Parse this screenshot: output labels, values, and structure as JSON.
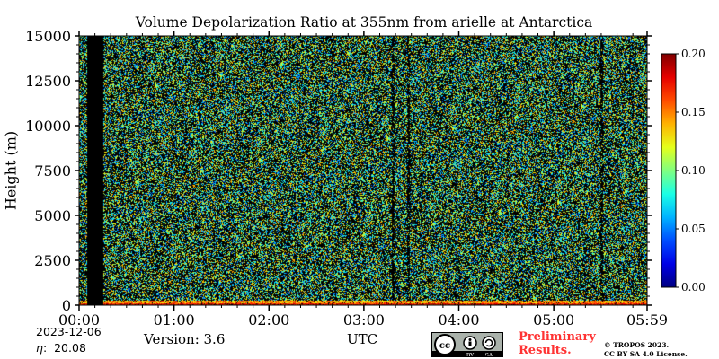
{
  "title": "Volume Depolarization Ratio at 355nm from arielle at Antarctica",
  "chart_data": {
    "type": "heatmap",
    "title": "Volume Depolarization Ratio at 355nm from arielle at Antarctica",
    "xlabel": "UTC",
    "ylabel": "Height (m)",
    "x_ticks": [
      "00:00",
      "01:00",
      "02:00",
      "03:00",
      "04:00",
      "05:00",
      "05:59"
    ],
    "y_ticks": [
      0,
      2500,
      5000,
      7500,
      10000,
      12500,
      15000
    ],
    "ylim": [
      0,
      15000
    ],
    "colorbar": {
      "ticks": [
        "0.00",
        "0.05",
        "0.10",
        "0.15",
        "0.20"
      ],
      "range": [
        0,
        0.2
      ],
      "colormap": "jet"
    },
    "data_gap": {
      "start": "00:05",
      "end": "00:15"
    },
    "near_surface_band": {
      "height_max": 300,
      "description_values": "elevated depolarization near ground"
    },
    "colors": {
      "noise_dark": "#000000",
      "noise_cyan": "#1ab4c8",
      "noise_green": "#33cc66",
      "noise_yellow": "#f0e020"
    }
  },
  "footer": {
    "date": "2023-12-06",
    "eta": "20.08",
    "version": "Version: 3.6",
    "utc": "UTC",
    "preliminary_line1": "Preliminary",
    "preliminary_line2": "Results.",
    "copyright_line1": "© TROPOS 2023.",
    "copyright_line2": "CC BY SA 4.0 License.",
    "license_icon": "cc-by-sa-badge"
  }
}
